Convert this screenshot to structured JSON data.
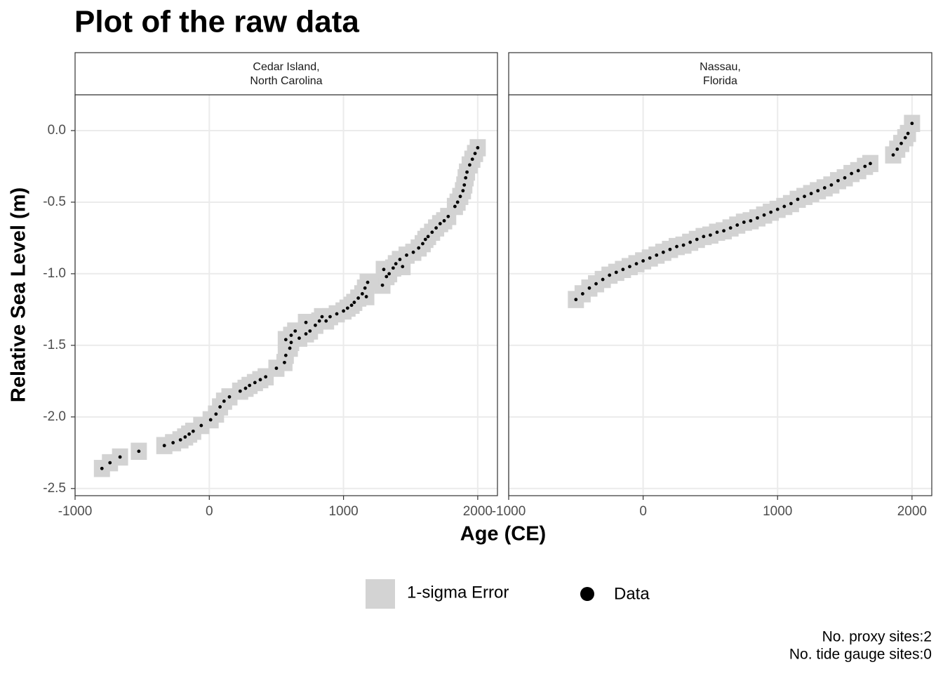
{
  "chart_data": {
    "type": "scatter",
    "title": "Plot of the raw data",
    "x_label": "Age (CE)",
    "y_label": "Relative Sea Level (m)",
    "xlim": [
      -1000,
      2147
    ],
    "ylim": [
      -2.55,
      0.25
    ],
    "xticks": [
      -1000,
      0,
      1000,
      2000
    ],
    "yticks": [
      {
        "value": 0,
        "label": "0.0"
      },
      -0.5,
      {
        "value": -1,
        "label": "-1.0"
      },
      -1.5,
      {
        "value": -2,
        "label": "-2.0"
      },
      -2.5
    ],
    "grid": true,
    "error_color": "#d3d3d3",
    "point_color": "#000000",
    "x_err": 60,
    "y_err": 0.06,
    "legend": {
      "error": "1-sigma Error",
      "data": "Data"
    },
    "caption": [
      "No. proxy sites:2",
      "No. tide gauge sites:0"
    ],
    "panels": [
      {
        "strip": [
          "Cedar Island,",
          "North Carolina"
        ],
        "x": [
          -800,
          -740,
          -665,
          -525,
          -335,
          -270,
          -215,
          -180,
          -150,
          -120,
          -60,
          10,
          50,
          80,
          110,
          150,
          230,
          270,
          300,
          340,
          380,
          420,
          500,
          560,
          570,
          600,
          610,
          570,
          610,
          640,
          670,
          720,
          750,
          720,
          790,
          820,
          840,
          870,
          900,
          950,
          1000,
          1030,
          1060,
          1080,
          1110,
          1140,
          1160,
          1180,
          1170,
          1290,
          1320,
          1340,
          1300,
          1370,
          1390,
          1420,
          1440,
          1470,
          1520,
          1560,
          1590,
          1610,
          1630,
          1660,
          1690,
          1720,
          1750,
          1780,
          1830,
          1850,
          1870,
          1890,
          1900,
          1910,
          1920,
          1940,
          1960,
          1980,
          2000
        ],
        "y": [
          -2.36,
          -2.32,
          -2.28,
          -2.24,
          -2.2,
          -2.18,
          -2.16,
          -2.14,
          -2.12,
          -2.1,
          -2.06,
          -2.02,
          -1.98,
          -1.93,
          -1.89,
          -1.86,
          -1.82,
          -1.8,
          -1.78,
          -1.76,
          -1.74,
          -1.72,
          -1.66,
          -1.62,
          -1.57,
          -1.52,
          -1.48,
          -1.46,
          -1.43,
          -1.4,
          -1.45,
          -1.42,
          -1.4,
          -1.34,
          -1.36,
          -1.33,
          -1.3,
          -1.33,
          -1.3,
          -1.28,
          -1.26,
          -1.24,
          -1.22,
          -1.2,
          -1.17,
          -1.14,
          -1.1,
          -1.06,
          -1.16,
          -1.08,
          -1.02,
          -1.0,
          -0.97,
          -0.96,
          -0.93,
          -0.9,
          -0.95,
          -0.87,
          -0.85,
          -0.82,
          -0.79,
          -0.76,
          -0.74,
          -0.71,
          -0.68,
          -0.65,
          -0.63,
          -0.6,
          -0.53,
          -0.5,
          -0.46,
          -0.42,
          -0.38,
          -0.33,
          -0.29,
          -0.24,
          -0.2,
          -0.16,
          -0.12
        ]
      },
      {
        "strip": [
          "Nassau,",
          "Florida"
        ],
        "x": [
          -500,
          -450,
          -400,
          -350,
          -300,
          -250,
          -200,
          -150,
          -100,
          -50,
          0,
          50,
          100,
          150,
          200,
          250,
          300,
          350,
          400,
          450,
          500,
          550,
          600,
          650,
          700,
          750,
          800,
          850,
          900,
          950,
          1000,
          1050,
          1100,
          1150,
          1200,
          1250,
          1300,
          1350,
          1400,
          1450,
          1500,
          1550,
          1600,
          1650,
          1690,
          1860,
          1890,
          1920,
          1950,
          1970,
          2000
        ],
        "y": [
          -1.18,
          -1.14,
          -1.1,
          -1.07,
          -1.04,
          -1.01,
          -0.99,
          -0.97,
          -0.95,
          -0.93,
          -0.91,
          -0.89,
          -0.87,
          -0.85,
          -0.83,
          -0.81,
          -0.8,
          -0.78,
          -0.76,
          -0.74,
          -0.73,
          -0.71,
          -0.7,
          -0.68,
          -0.66,
          -0.64,
          -0.63,
          -0.61,
          -0.59,
          -0.57,
          -0.55,
          -0.53,
          -0.51,
          -0.48,
          -0.46,
          -0.44,
          -0.42,
          -0.4,
          -0.38,
          -0.35,
          -0.33,
          -0.3,
          -0.28,
          -0.25,
          -0.23,
          -0.17,
          -0.13,
          -0.09,
          -0.05,
          -0.02,
          0.05
        ]
      }
    ]
  }
}
